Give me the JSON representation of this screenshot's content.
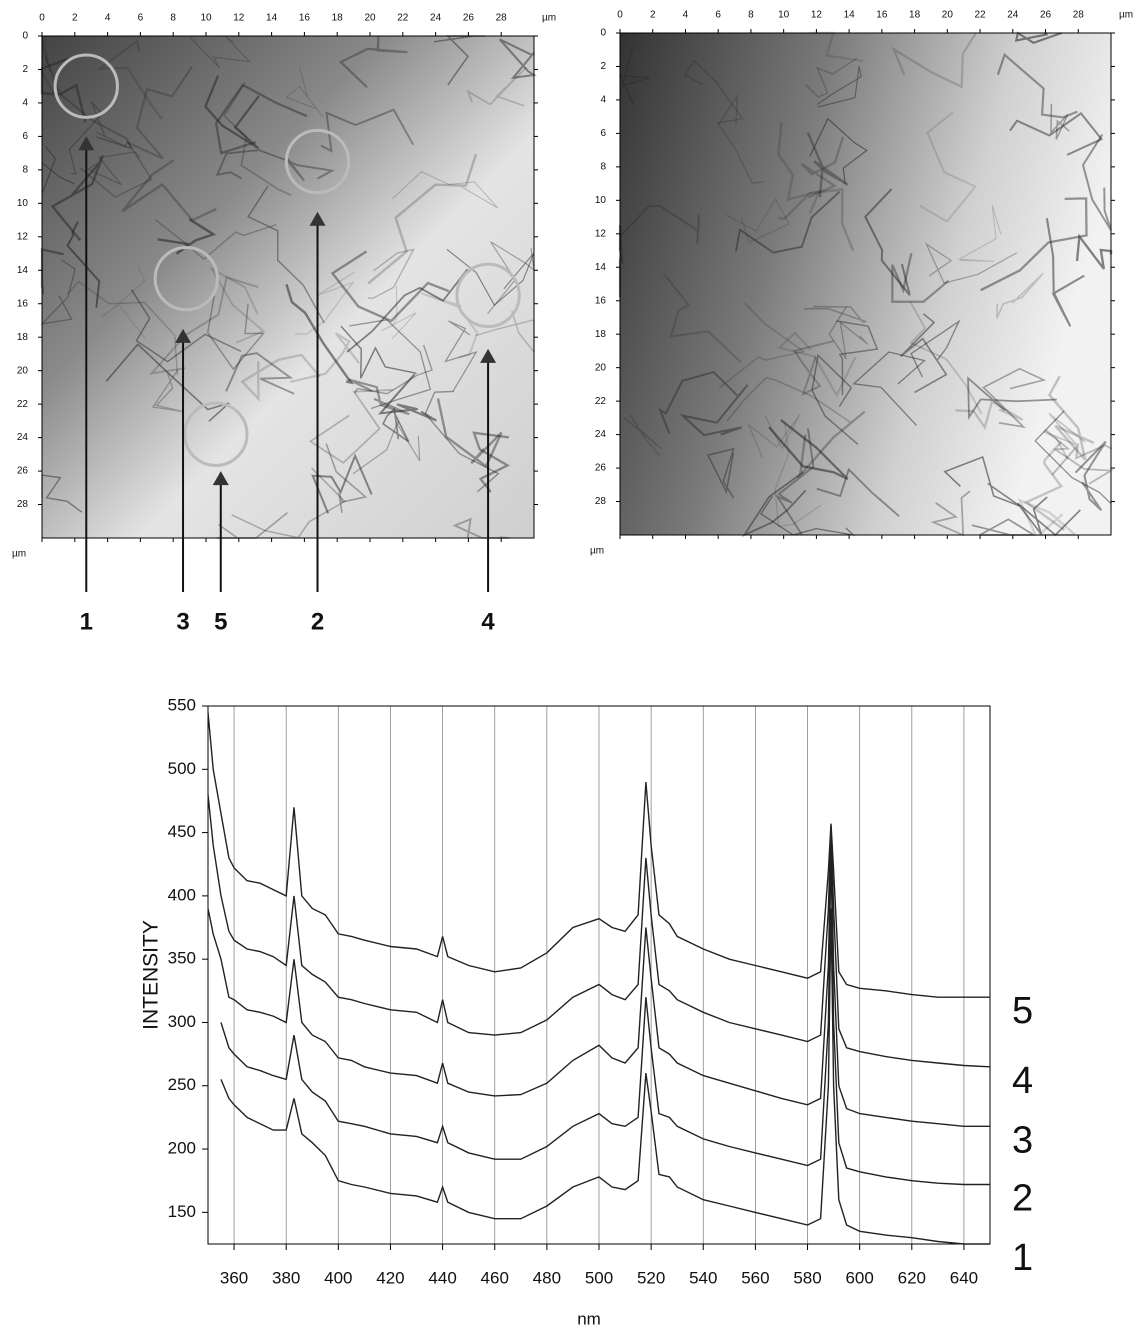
{
  "chart_data": [
    {
      "type": "image",
      "unit": "µm",
      "xlim": [
        0,
        30
      ],
      "ylim": [
        0,
        30
      ],
      "xticks": [
        0,
        2,
        4,
        6,
        8,
        10,
        12,
        14,
        16,
        18,
        20,
        22,
        24,
        26,
        28
      ],
      "yticks": [
        0,
        2,
        4,
        6,
        8,
        10,
        12,
        14,
        16,
        18,
        20,
        22,
        24,
        26,
        28
      ],
      "markers": [
        {
          "label": "1",
          "x": 2.7,
          "y": 6
        },
        {
          "label": "3",
          "x": 8.6,
          "y": 17.5
        },
        {
          "label": "5",
          "x": 10.9,
          "y": 26
        },
        {
          "label": "2",
          "x": 16.8,
          "y": 10.5
        },
        {
          "label": "4",
          "x": 27.2,
          "y": 18.7
        }
      ],
      "regions": [
        {
          "x": 2.7,
          "y": 3,
          "r": 1.9
        },
        {
          "x": 16.8,
          "y": 7.5,
          "r": 1.9
        },
        {
          "x": 8.8,
          "y": 14.5,
          "r": 1.9
        },
        {
          "x": 10.6,
          "y": 23.8,
          "r": 1.9
        },
        {
          "x": 27.2,
          "y": 15.5,
          "r": 1.9
        }
      ]
    },
    {
      "type": "image",
      "unit": "µm",
      "xlim": [
        0,
        30
      ],
      "ylim": [
        0,
        30
      ],
      "xticks": [
        0,
        2,
        4,
        6,
        8,
        10,
        12,
        14,
        16,
        18,
        20,
        22,
        24,
        26,
        28
      ],
      "yticks": [
        0,
        2,
        4,
        6,
        8,
        10,
        12,
        14,
        16,
        18,
        20,
        22,
        24,
        26,
        28
      ]
    },
    {
      "type": "line",
      "xlabel": "nm",
      "ylabel": "INTENSITY",
      "grid": true,
      "xlim": [
        350,
        650
      ],
      "ylim": [
        125,
        550
      ],
      "xticks": [
        360,
        380,
        400,
        420,
        440,
        460,
        480,
        500,
        520,
        540,
        560,
        580,
        600,
        620,
        640
      ],
      "yticks": [
        150,
        200,
        250,
        300,
        350,
        400,
        450,
        500,
        550
      ],
      "x": [
        350,
        352,
        355,
        358,
        360,
        365,
        370,
        375,
        380,
        383,
        386,
        390,
        395,
        400,
        405,
        410,
        420,
        430,
        438,
        440,
        442,
        450,
        460,
        470,
        480,
        490,
        500,
        505,
        510,
        515,
        518,
        520,
        523,
        527,
        530,
        540,
        550,
        560,
        570,
        580,
        585,
        588,
        589,
        590,
        592,
        595,
        600,
        610,
        620,
        630,
        640,
        650
      ],
      "series": [
        {
          "name": "1",
          "color": "#222222",
          "values": [
            null,
            null,
            255,
            240,
            235,
            225,
            220,
            215,
            215,
            240,
            212,
            205,
            195,
            175,
            172,
            170,
            165,
            163,
            158,
            170,
            158,
            150,
            145,
            145,
            155,
            170,
            178,
            170,
            168,
            175,
            260,
            230,
            180,
            178,
            170,
            160,
            155,
            150,
            145,
            140,
            145,
            250,
            390,
            250,
            160,
            140,
            135,
            132,
            130,
            127,
            125,
            125
          ]
        },
        {
          "name": "2",
          "color": "#222222",
          "values": [
            null,
            null,
            300,
            280,
            275,
            265,
            262,
            258,
            255,
            290,
            255,
            245,
            238,
            222,
            220,
            218,
            212,
            210,
            205,
            218,
            205,
            197,
            192,
            192,
            202,
            218,
            228,
            220,
            218,
            225,
            320,
            280,
            228,
            225,
            218,
            208,
            202,
            197,
            192,
            187,
            192,
            300,
            440,
            300,
            205,
            185,
            182,
            178,
            175,
            173,
            172,
            172
          ]
        },
        {
          "name": "3",
          "color": "#222222",
          "values": [
            390,
            370,
            350,
            320,
            318,
            310,
            308,
            305,
            300,
            350,
            300,
            290,
            285,
            272,
            270,
            265,
            260,
            258,
            252,
            268,
            252,
            245,
            242,
            243,
            252,
            270,
            282,
            272,
            268,
            280,
            375,
            335,
            280,
            275,
            268,
            258,
            252,
            246,
            240,
            235,
            240,
            345,
            450,
            345,
            250,
            232,
            228,
            225,
            222,
            220,
            218,
            218
          ]
        },
        {
          "name": "4",
          "color": "#222222",
          "values": [
            480,
            440,
            400,
            372,
            365,
            358,
            356,
            352,
            345,
            400,
            345,
            338,
            332,
            320,
            318,
            315,
            310,
            308,
            300,
            318,
            300,
            292,
            290,
            292,
            302,
            320,
            330,
            322,
            318,
            330,
            430,
            385,
            330,
            325,
            318,
            308,
            300,
            295,
            290,
            285,
            290,
            390,
            455,
            390,
            295,
            280,
            277,
            273,
            270,
            268,
            266,
            265
          ]
        },
        {
          "name": "5",
          "color": "#222222",
          "values": [
            545,
            500,
            465,
            430,
            422,
            412,
            410,
            405,
            400,
            470,
            400,
            390,
            385,
            370,
            368,
            365,
            360,
            358,
            352,
            368,
            352,
            345,
            340,
            343,
            355,
            375,
            382,
            375,
            372,
            385,
            490,
            440,
            385,
            378,
            368,
            358,
            350,
            345,
            340,
            335,
            340,
            420,
            457,
            420,
            340,
            330,
            327,
            325,
            322,
            320,
            320,
            320
          ]
        }
      ]
    }
  ]
}
